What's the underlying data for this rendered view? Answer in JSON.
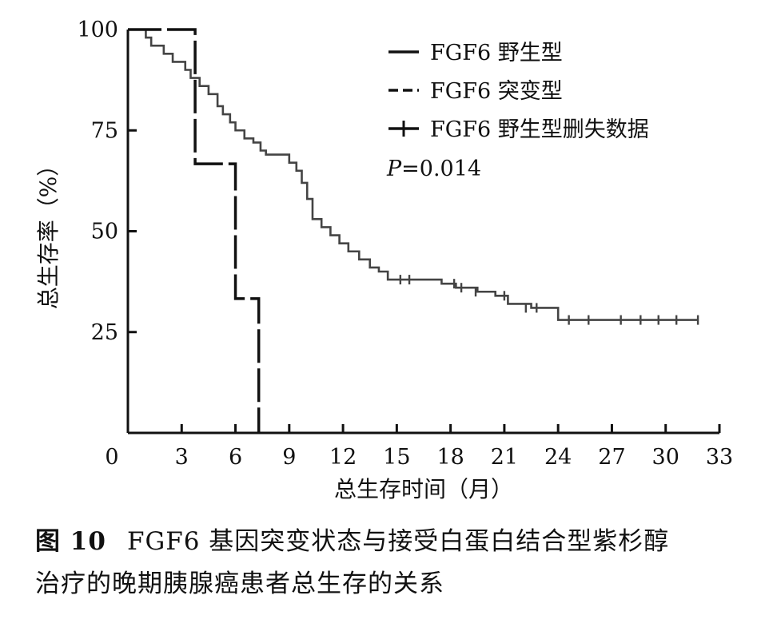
{
  "chart_data": {
    "type": "line",
    "subtype": "kaplan-meier",
    "xlabel": "总生存时间（月）",
    "ylabel": "总生存率（%）",
    "xlim": [
      0,
      33
    ],
    "ylim": [
      0,
      100
    ],
    "xticks": [
      0,
      3,
      6,
      9,
      12,
      15,
      18,
      21,
      24,
      27,
      30,
      33
    ],
    "yticks": [
      25,
      50,
      75,
      100
    ],
    "grid": false,
    "legend_position": "top-right",
    "legend": [
      {
        "label": "FGF6 野生型",
        "style": "solid"
      },
      {
        "label": "FGF6 突变型",
        "style": "dashed"
      },
      {
        "label": "FGF6 野生型删失数据",
        "style": "censor"
      }
    ],
    "p_value_label": "P",
    "p_value_text": "=0.014",
    "series": [
      {
        "name": "FGF6 野生型",
        "style": "solid",
        "x": [
          0,
          1.0,
          1.3,
          2.0,
          2.5,
          3.2,
          3.5,
          4.0,
          4.5,
          5.0,
          5.3,
          5.7,
          6.0,
          6.5,
          7.0,
          7.4,
          7.7,
          8.5,
          9.0,
          9.4,
          9.7,
          10.0,
          10.3,
          10.8,
          11.3,
          11.8,
          12.3,
          12.9,
          13.5,
          14.0,
          14.5,
          16.0,
          17.5,
          18.3,
          19.5,
          20.5,
          21.2,
          22.5,
          24.0,
          31.8
        ],
        "y": [
          100,
          98,
          96,
          94,
          92,
          90,
          88,
          86,
          84,
          81,
          79,
          77,
          75,
          73,
          72,
          70,
          69,
          69,
          67,
          65,
          62,
          58,
          53,
          51,
          49,
          47,
          45,
          43,
          41,
          40,
          38,
          38,
          37,
          36,
          35,
          34,
          32,
          31,
          28,
          28
        ]
      },
      {
        "name": "FGF6 突变型",
        "style": "dashed",
        "x": [
          0,
          3.75,
          6.0,
          7.3
        ],
        "y": [
          100,
          66.7,
          33.3,
          0
        ]
      }
    ],
    "censored": {
      "series": "FGF6 野生型",
      "x": [
        15.2,
        15.7,
        18.2,
        18.6,
        19.4,
        21.0,
        22.2,
        22.8,
        24.6,
        25.7,
        27.5,
        28.6,
        29.6,
        30.6,
        31.8
      ],
      "y": [
        38,
        38,
        37,
        36,
        35,
        34,
        31,
        31,
        28,
        28,
        28,
        28,
        28,
        28,
        28
      ]
    }
  },
  "caption": {
    "figure_label": "图 10",
    "line1": "FGF6 基因突变状态与接受白蛋白结合型紫杉醇",
    "line2": "治疗的晚期胰腺癌患者总生存的关系"
  }
}
